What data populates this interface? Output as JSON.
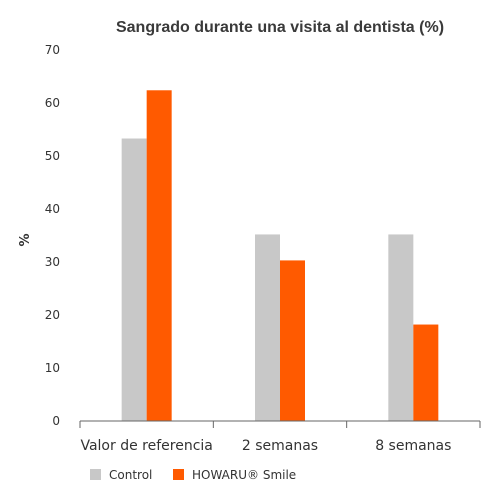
{
  "chart_data": {
    "type": "bar",
    "title": "Sangrado durante una visita al dentista (%)",
    "ylabel": "%",
    "xlabel": "",
    "ylim": [
      0,
      70
    ],
    "yticks": [
      0,
      10,
      20,
      30,
      40,
      50,
      60,
      70
    ],
    "categories": [
      "Valor de referencia",
      "2 semanas",
      "8 semanas"
    ],
    "series": [
      {
        "name": "Control",
        "color": "#c8c8c8",
        "values": [
          53.3,
          35.2,
          35.2
        ]
      },
      {
        "name": "HOWARU® Smile",
        "color": "#ff5a00",
        "values": [
          62.4,
          30.3,
          18.2
        ]
      }
    ],
    "grid": false,
    "legend": "bottom-left"
  }
}
